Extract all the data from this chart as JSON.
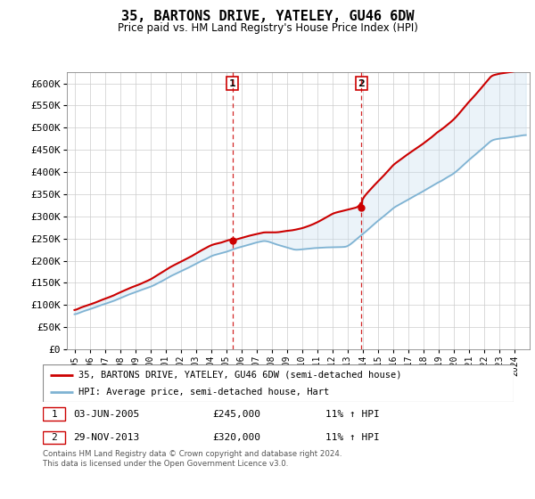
{
  "title": "35, BARTONS DRIVE, YATELEY, GU46 6DW",
  "subtitle": "Price paid vs. HM Land Registry's House Price Index (HPI)",
  "ylabel_ticks": [
    "£0",
    "£50K",
    "£100K",
    "£150K",
    "£200K",
    "£250K",
    "£300K",
    "£350K",
    "£400K",
    "£450K",
    "£500K",
    "£550K",
    "£600K"
  ],
  "ytick_values": [
    0,
    50000,
    100000,
    150000,
    200000,
    250000,
    300000,
    350000,
    400000,
    450000,
    500000,
    550000,
    600000
  ],
  "ylim": [
    0,
    625000
  ],
  "sale1_x": 2005.42,
  "sale1_y": 245000,
  "sale2_x": 2013.91,
  "sale2_y": 320000,
  "line1_color": "#cc0000",
  "line2_color": "#7fb3d3",
  "fill_color": "#c8dff0",
  "vline_color": "#cc0000",
  "legend_line1": "35, BARTONS DRIVE, YATELEY, GU46 6DW (semi-detached house)",
  "legend_line2": "HPI: Average price, semi-detached house, Hart",
  "footer": "Contains HM Land Registry data © Crown copyright and database right 2024.\nThis data is licensed under the Open Government Licence v3.0.",
  "xmin": 1994.5,
  "xmax": 2025.0
}
